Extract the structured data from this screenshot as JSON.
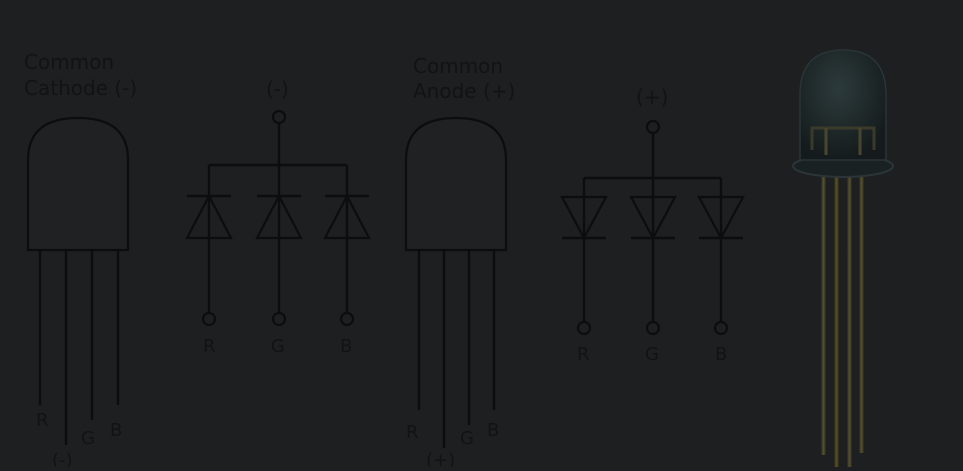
{
  "cathode": {
    "title_line1": "Common",
    "title_line2": "Cathode (-)",
    "common_symbol": "(-)",
    "pins": [
      "R",
      "G",
      "B"
    ],
    "legs": [
      "R",
      "(-)",
      "G",
      "B"
    ]
  },
  "anode": {
    "title_line1": "Common",
    "title_line2": "Anode (+)",
    "common_symbol": "(+)",
    "pins": [
      "R",
      "G",
      "B"
    ],
    "legs": [
      "R",
      "(+)",
      "G",
      "B"
    ]
  }
}
